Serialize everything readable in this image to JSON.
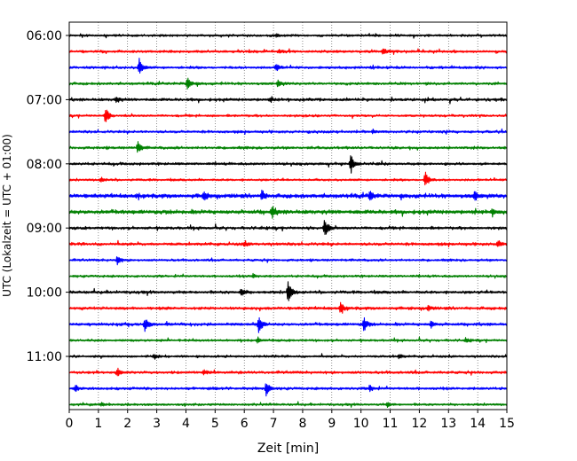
{
  "chart_data": {
    "type": "line",
    "title": "",
    "xlabel": "Zeit  [min]",
    "ylabel": "UTC (Lokalzeit = UTC + 01:00)",
    "xlim": [
      0,
      15
    ],
    "x_ticks": [
      "0",
      "1",
      "2",
      "3",
      "4",
      "5",
      "6",
      "7",
      "8",
      "9",
      "10",
      "11",
      "12",
      "13",
      "14",
      "15"
    ],
    "y_ticks": [
      "06:00",
      "07:00",
      "08:00",
      "09:00",
      "10:00",
      "11:00"
    ],
    "grid": "vertical dotted at each minute",
    "minutes_per_trace": 15,
    "trace_colors": [
      "#000000",
      "#ff0000",
      "#0000ff",
      "#008000"
    ],
    "traces": [
      {
        "start": "06:00",
        "color": "#000000",
        "noise": 0.08,
        "events": [
          [
            7.1,
            0.12
          ]
        ]
      },
      {
        "start": "06:15",
        "color": "#ff0000",
        "noise": 0.09,
        "events": [
          [
            10.75,
            0.22
          ],
          [
            7.2,
            0.1
          ]
        ]
      },
      {
        "start": "06:30",
        "color": "#0000ff",
        "noise": 0.09,
        "events": [
          [
            2.4,
            0.6
          ],
          [
            7.1,
            0.22
          ]
        ]
      },
      {
        "start": "06:45",
        "color": "#008000",
        "noise": 0.09,
        "events": [
          [
            4.05,
            0.4
          ],
          [
            7.15,
            0.2
          ]
        ]
      },
      {
        "start": "07:00",
        "color": "#000000",
        "noise": 0.1,
        "events": [
          [
            1.6,
            0.18
          ],
          [
            6.9,
            0.1
          ]
        ]
      },
      {
        "start": "07:15",
        "color": "#ff0000",
        "noise": 0.08,
        "events": [
          [
            1.25,
            0.55
          ]
        ]
      },
      {
        "start": "07:30",
        "color": "#0000ff",
        "noise": 0.09,
        "events": [
          [
            10.4,
            0.1
          ]
        ]
      },
      {
        "start": "07:45",
        "color": "#008000",
        "noise": 0.09,
        "events": [
          [
            2.35,
            0.35
          ]
        ]
      },
      {
        "start": "08:00",
        "color": "#000000",
        "noise": 0.09,
        "events": [
          [
            9.65,
            0.6
          ]
        ]
      },
      {
        "start": "08:15",
        "color": "#ff0000",
        "noise": 0.08,
        "events": [
          [
            12.2,
            0.55
          ],
          [
            1.1,
            0.15
          ]
        ]
      },
      {
        "start": "08:30",
        "color": "#0000ff",
        "noise": 0.14,
        "events": [
          [
            4.6,
            0.25
          ],
          [
            6.6,
            0.3
          ],
          [
            10.3,
            0.3
          ],
          [
            13.9,
            0.3
          ]
        ]
      },
      {
        "start": "08:45",
        "color": "#008000",
        "noise": 0.14,
        "events": [
          [
            6.95,
            0.35
          ],
          [
            14.5,
            0.15
          ]
        ]
      },
      {
        "start": "09:00",
        "color": "#000000",
        "noise": 0.1,
        "events": [
          [
            8.75,
            0.65
          ]
        ]
      },
      {
        "start": "09:15",
        "color": "#ff0000",
        "noise": 0.1,
        "events": [
          [
            14.7,
            0.25
          ],
          [
            6.0,
            0.12
          ]
        ]
      },
      {
        "start": "09:30",
        "color": "#0000ff",
        "noise": 0.08,
        "events": [
          [
            1.65,
            0.25
          ]
        ]
      },
      {
        "start": "09:45",
        "color": "#008000",
        "noise": 0.08,
        "events": [
          [
            6.3,
            0.12
          ]
        ]
      },
      {
        "start": "10:00",
        "color": "#000000",
        "noise": 0.1,
        "events": [
          [
            5.9,
            0.25
          ],
          [
            7.5,
            0.75
          ]
        ]
      },
      {
        "start": "10:15",
        "color": "#ff0000",
        "noise": 0.1,
        "events": [
          [
            9.3,
            0.3
          ],
          [
            12.3,
            0.15
          ]
        ]
      },
      {
        "start": "10:30",
        "color": "#0000ff",
        "noise": 0.1,
        "events": [
          [
            2.6,
            0.45
          ],
          [
            6.5,
            0.55
          ],
          [
            10.1,
            0.45
          ],
          [
            12.4,
            0.2
          ]
        ]
      },
      {
        "start": "10:45",
        "color": "#008000",
        "noise": 0.08,
        "events": [
          [
            6.45,
            0.15
          ],
          [
            13.6,
            0.12
          ]
        ]
      },
      {
        "start": "11:00",
        "color": "#000000",
        "noise": 0.08,
        "events": [
          [
            11.3,
            0.15
          ],
          [
            2.9,
            0.12
          ]
        ]
      },
      {
        "start": "11:15",
        "color": "#ff0000",
        "noise": 0.09,
        "events": [
          [
            1.65,
            0.3
          ],
          [
            4.6,
            0.1
          ]
        ]
      },
      {
        "start": "11:30",
        "color": "#0000ff",
        "noise": 0.09,
        "events": [
          [
            6.75,
            0.5
          ],
          [
            10.3,
            0.2
          ],
          [
            0.2,
            0.15
          ]
        ]
      },
      {
        "start": "11:45",
        "color": "#008000",
        "noise": 0.08,
        "events": [
          [
            10.9,
            0.15
          ],
          [
            1.1,
            0.1
          ]
        ]
      }
    ]
  }
}
